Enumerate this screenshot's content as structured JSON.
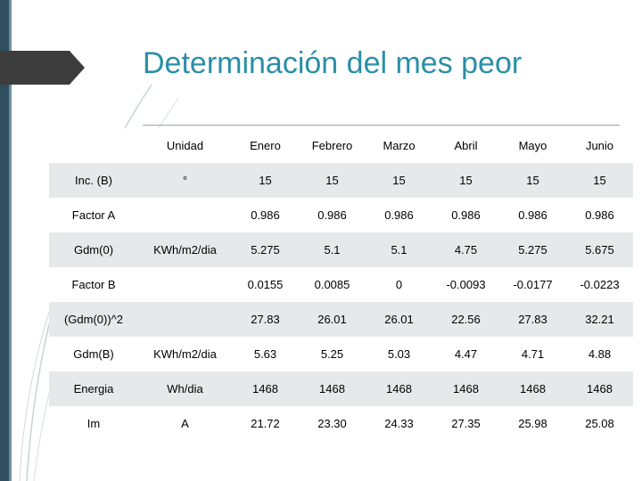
{
  "title": "Determinación del mes peor",
  "table": {
    "headers": [
      "",
      "Unidad",
      "Enero",
      "Febrero",
      "Marzo",
      "Abril",
      "Mayo",
      "Junio"
    ],
    "rows": [
      {
        "label": "Inc. (B)",
        "unit": "°",
        "values": [
          "15",
          "15",
          "15",
          "15",
          "15",
          "15"
        ]
      },
      {
        "label": "Factor A",
        "unit": "",
        "values": [
          "0.986",
          "0.986",
          "0.986",
          "0.986",
          "0.986",
          "0.986"
        ]
      },
      {
        "label": "Gdm(0)",
        "unit": "KWh/m2/dia",
        "values": [
          "5.275",
          "5.1",
          "5.1",
          "4.75",
          "5.275",
          "5.675"
        ]
      },
      {
        "label": "Factor B",
        "unit": "",
        "values": [
          "0.0155",
          "0.0085",
          "0",
          "-0.0093",
          "-0.0177",
          "-0.0223"
        ]
      },
      {
        "label": "(Gdm(0))^2",
        "unit": "",
        "values": [
          "27.83",
          "26.01",
          "26.01",
          "22.56",
          "27.83",
          "32.21"
        ]
      },
      {
        "label": "Gdm(B)",
        "unit": "KWh/m2/dia",
        "values": [
          "5.63",
          "5.25",
          "5.03",
          "4.47",
          "4.71",
          "4.88"
        ]
      },
      {
        "label": "Energia",
        "unit": "Wh/dia",
        "values": [
          "1468",
          "1468",
          "1468",
          "1468",
          "1468",
          "1468"
        ]
      },
      {
        "label": "Im",
        "unit": "A",
        "values": [
          "21.72",
          "23.30",
          "24.33",
          "27.35",
          "25.98",
          "25.08"
        ]
      }
    ]
  },
  "colors": {
    "title": "#2a8fa8",
    "row_shade": "#e6e9ea",
    "sidebar": "#2f4f5f"
  }
}
